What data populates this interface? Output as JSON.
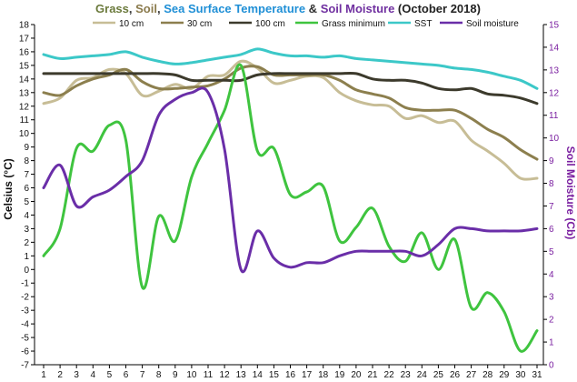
{
  "chart_data": {
    "type": "line",
    "title_parts": [
      {
        "text": "Grass",
        "color": "#6b7a3c"
      },
      {
        "text": ", ",
        "color": "#333333"
      },
      {
        "text": "Soil",
        "color": "#8a7a4c"
      },
      {
        "text": ", ",
        "color": "#333333"
      },
      {
        "text": "Sea Surface Temperature",
        "color": "#1f8fd6"
      },
      {
        "text": " & ",
        "color": "#333333"
      },
      {
        "text": "Soil Moisture",
        "color": "#7030a0"
      },
      {
        "text": " (October 2018)",
        "color": "#222222"
      }
    ],
    "ylabel_left": "Celsius (°C)",
    "ylabel_right": "Soil Moisture (Cb)",
    "x": [
      1,
      2,
      3,
      4,
      5,
      6,
      7,
      8,
      9,
      10,
      11,
      12,
      13,
      14,
      15,
      16,
      17,
      18,
      19,
      20,
      21,
      22,
      23,
      24,
      25,
      26,
      27,
      28,
      29,
      30,
      31
    ],
    "ylim_left": [
      -7,
      18
    ],
    "ylim_right": [
      0,
      15
    ],
    "yticks_left": [
      -7,
      -6,
      -5,
      -4,
      -3,
      -2,
      -1,
      0,
      1,
      2,
      3,
      4,
      5,
      6,
      7,
      8,
      9,
      10,
      11,
      12,
      13,
      14,
      15,
      16,
      17,
      18
    ],
    "yticks_right": [
      0,
      1,
      2,
      3,
      4,
      5,
      6,
      7,
      8,
      9,
      10,
      11,
      12,
      13,
      14,
      15
    ],
    "grid": false,
    "legend_placement": "top",
    "series": [
      {
        "name": "10 cm",
        "color": "#c7bd96",
        "axis": "left",
        "values": [
          12.2,
          12.6,
          13.9,
          14.1,
          14.7,
          14.4,
          12.8,
          13.1,
          13.6,
          13.3,
          14.2,
          14.3,
          15.3,
          14.8,
          13.7,
          13.9,
          14.2,
          14.1,
          13.0,
          12.4,
          12.1,
          12.0,
          11.1,
          11.3,
          10.8,
          10.9,
          9.5,
          8.7,
          7.8,
          6.7,
          6.7
        ]
      },
      {
        "name": "30 cm",
        "color": "#8c7f4e",
        "axis": "left",
        "values": [
          13.0,
          12.8,
          13.5,
          14.0,
          14.3,
          14.7,
          13.8,
          13.3,
          13.3,
          13.4,
          13.5,
          14.0,
          14.8,
          14.9,
          14.3,
          14.3,
          14.3,
          14.3,
          13.9,
          13.2,
          12.9,
          12.6,
          11.9,
          11.7,
          11.7,
          11.7,
          11.1,
          10.3,
          9.7,
          8.8,
          8.1
        ]
      },
      {
        "name": "100 cm",
        "color": "#3c3a2c",
        "axis": "left",
        "values": [
          14.4,
          14.4,
          14.4,
          14.4,
          14.4,
          14.4,
          14.4,
          14.4,
          14.3,
          13.9,
          13.9,
          13.9,
          13.9,
          14.3,
          14.4,
          14.4,
          14.4,
          14.4,
          14.4,
          14.4,
          14.0,
          13.9,
          13.9,
          13.7,
          13.3,
          13.2,
          13.3,
          12.9,
          12.8,
          12.6,
          12.2
        ]
      },
      {
        "name": "Grass minimum",
        "color": "#3fc43f",
        "axis": "left",
        "values": [
          1.0,
          3.0,
          8.9,
          8.7,
          10.6,
          9.5,
          -1.3,
          3.9,
          2.1,
          6.8,
          9.3,
          11.7,
          15.0,
          8.7,
          8.9,
          5.5,
          5.7,
          6.1,
          2.1,
          3.1,
          4.5,
          1.7,
          0.6,
          2.7,
          0.0,
          2.2,
          -2.8,
          -1.7,
          -3.1,
          -6.0,
          -4.5
        ]
      },
      {
        "name": "SST",
        "color": "#3cc8c8",
        "axis": "left",
        "values": [
          15.8,
          15.5,
          15.6,
          15.7,
          15.8,
          16.0,
          15.6,
          15.3,
          15.1,
          15.2,
          15.4,
          15.6,
          15.8,
          16.2,
          15.9,
          15.7,
          15.7,
          15.6,
          15.7,
          15.5,
          15.4,
          15.3,
          15.2,
          15.1,
          15.0,
          14.8,
          14.7,
          14.5,
          14.2,
          13.9,
          13.3
        ]
      },
      {
        "name": "Soil moisture",
        "color": "#6a2ea8",
        "axis": "right",
        "values": [
          7.8,
          8.8,
          7.0,
          7.4,
          7.7,
          8.3,
          9.0,
          11.0,
          11.7,
          12.0,
          12.0,
          9.5,
          4.2,
          5.9,
          4.7,
          4.3,
          4.5,
          4.5,
          4.8,
          5.0,
          5.0,
          5.0,
          5.0,
          4.8,
          5.3,
          6.0,
          6.0,
          5.9,
          5.9,
          5.9,
          6.0
        ]
      }
    ]
  }
}
